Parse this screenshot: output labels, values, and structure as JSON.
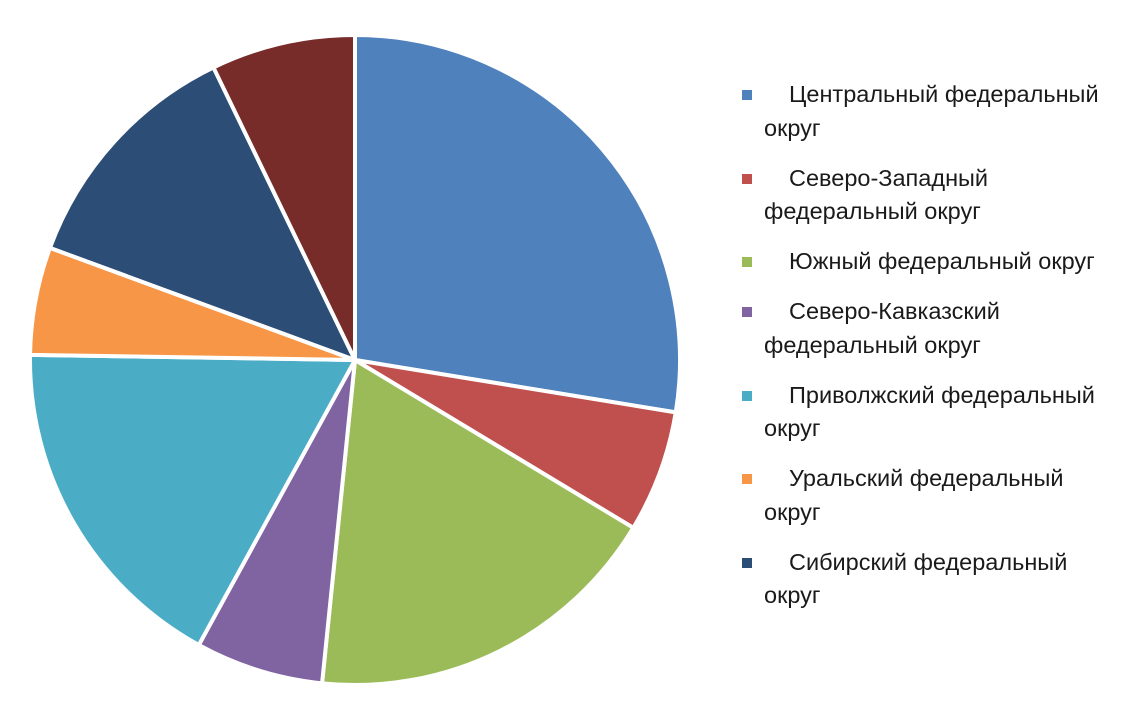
{
  "chart_data": {
    "type": "pie",
    "title": "",
    "slices": [
      {
        "label": "Центральный федеральный округ",
        "value": 27.3,
        "color": "#4F81BD"
      },
      {
        "label": "Северо-Западный федеральный округ",
        "value": 6.0,
        "color": "#C0504D"
      },
      {
        "label": "Южный федеральный округ",
        "value": 17.8,
        "color": "#9BBB59"
      },
      {
        "label": "Северо-Кавказский федеральный округ",
        "value": 6.3,
        "color": "#8064A2"
      },
      {
        "label": "Приволжский федеральный округ",
        "value": 17.1,
        "color": "#4BACC6"
      },
      {
        "label": "Уральский федеральный округ",
        "value": 5.3,
        "color": "#F79646"
      },
      {
        "label": "Сибирский федеральный округ",
        "value": 12.1,
        "color": "#2C4D75"
      },
      {
        "label": "",
        "value": 7.1,
        "color": "#772C2A"
      }
    ],
    "start_angle_deg": 0,
    "direction": "clockwise",
    "legend_position": "right"
  }
}
